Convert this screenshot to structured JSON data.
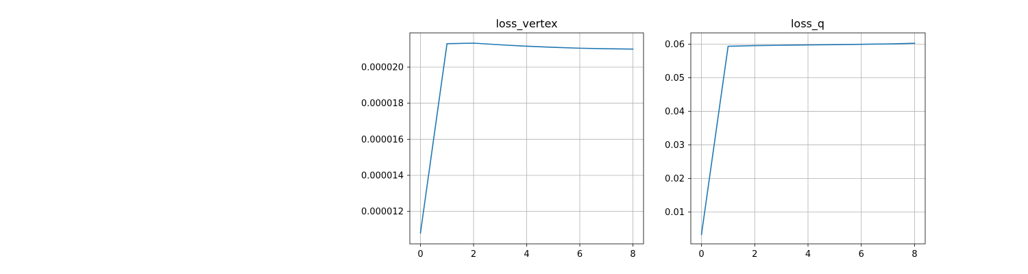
{
  "chart_data": [
    {
      "type": "line",
      "title": "loss_vertex",
      "xlabel": "",
      "ylabel": "",
      "x": [
        0,
        1,
        2,
        3,
        4,
        5,
        6,
        7,
        8
      ],
      "series": [
        {
          "values": [
            1.08e-05,
            2.13e-05,
            2.133e-05,
            2.124e-05,
            2.116e-05,
            2.11e-05,
            2.105e-05,
            2.102e-05,
            2.1e-05
          ]
        }
      ],
      "xlim": [
        -0.4,
        8.4
      ],
      "ylim": [
        1.02e-05,
        2.19e-05
      ],
      "xticks": [
        0,
        2,
        4,
        6,
        8
      ],
      "xtick_labels": [
        "0",
        "2",
        "4",
        "6",
        "8"
      ],
      "yticks": [
        1.2e-05,
        1.4e-05,
        1.6e-05,
        1.8e-05,
        2e-05
      ],
      "ytick_labels": [
        "0.000012",
        "0.000014",
        "0.000016",
        "0.000018",
        "0.000020"
      ],
      "grid": true,
      "line_color": "#1f77b4"
    },
    {
      "type": "line",
      "title": "loss_q",
      "xlabel": "",
      "ylabel": "",
      "x": [
        0,
        1,
        2,
        3,
        4,
        5,
        6,
        7,
        8
      ],
      "series": [
        {
          "values": [
            0.0033,
            0.0594,
            0.0596,
            0.0597,
            0.0598,
            0.0599,
            0.06,
            0.0601,
            0.0603
          ]
        }
      ],
      "xlim": [
        -0.4,
        8.4
      ],
      "ylim": [
        0.0005,
        0.0634
      ],
      "xticks": [
        0,
        2,
        4,
        6,
        8
      ],
      "xtick_labels": [
        "0",
        "2",
        "4",
        "6",
        "8"
      ],
      "yticks": [
        0.01,
        0.02,
        0.03,
        0.04,
        0.05,
        0.06
      ],
      "ytick_labels": [
        "0.01",
        "0.02",
        "0.03",
        "0.04",
        "0.05",
        "0.06"
      ],
      "grid": true,
      "line_color": "#1f77b4"
    }
  ]
}
